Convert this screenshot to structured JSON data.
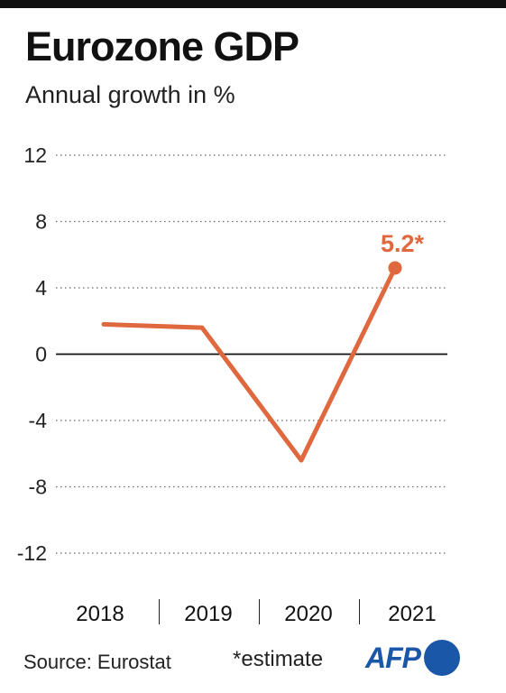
{
  "header": {
    "title": "Eurozone GDP",
    "subtitle": "Annual growth in %"
  },
  "footer": {
    "source": "Source: Eurostat",
    "note": "*estimate",
    "logo_text": "AFP"
  },
  "colors": {
    "line": "#e0683e",
    "afp_blue": "#1a57a8",
    "grid": "#666666",
    "zero_line": "#111111"
  },
  "chart_data": {
    "type": "line",
    "categories": [
      "2018",
      "2019",
      "2020",
      "2021"
    ],
    "series": [
      {
        "values": [
          1.8,
          1.6,
          -6.4,
          5.2
        ]
      }
    ],
    "annotation": {
      "category": "2021",
      "label": "5.2*"
    },
    "yticks": [
      12,
      8,
      4,
      0,
      -4,
      -8,
      -12
    ],
    "ytick_labels": [
      "12",
      "8",
      "4",
      "0",
      "-4",
      "-8",
      "-12"
    ],
    "ylim": [
      -12,
      12
    ],
    "grid": true,
    "xlabel": "",
    "ylabel": ""
  }
}
